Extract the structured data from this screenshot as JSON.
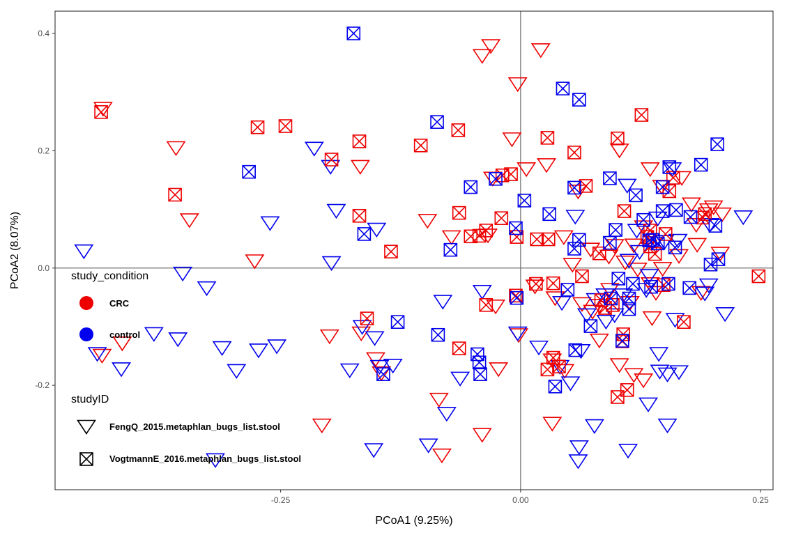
{
  "chart_data": {
    "type": "scatter",
    "title": "",
    "xlabel": "PCoA1 (9.25%)",
    "ylabel": "PCoA2 (8.07%)",
    "xlim": [
      -0.485,
      0.263
    ],
    "ylim": [
      -0.378,
      0.438
    ],
    "x_ticks": [
      -0.25,
      0.0,
      0.25
    ],
    "x_tick_labels": [
      "-0.25",
      "0.00",
      "0.25"
    ],
    "y_ticks": [
      -0.2,
      0.0,
      0.2,
      0.4
    ],
    "y_tick_labels": [
      "-0.2",
      "0.0",
      "0.2",
      "0.4"
    ],
    "reference_lines": {
      "x": 0.0,
      "y": 0.0
    },
    "grid": false,
    "legend_position": "left-inside",
    "legends": [
      {
        "title": "study_condition",
        "encodes": "color",
        "entries": [
          {
            "label": "CRC",
            "color": "#ee0000"
          },
          {
            "label": "control",
            "color": "#0000ee"
          }
        ]
      },
      {
        "title": "studyID",
        "encodes": "shape",
        "entries": [
          {
            "label": "FengQ_2015.metaphlan_bugs_list.stool",
            "shape": "triangle-down"
          },
          {
            "label": "VogtmannE_2016.metaphlan_bugs_list.stool",
            "shape": "square-x"
          }
        ]
      }
    ],
    "colors": {
      "CRC": "#ee0000",
      "control": "#0000ee"
    },
    "series": [
      {
        "condition": "CRC",
        "shape": "triangle-down",
        "points": [
          [
            -0.435,
            0.271
          ],
          [
            -0.359,
            0.204
          ],
          [
            -0.345,
            0.081
          ],
          [
            -0.277,
            0.011
          ],
          [
            -0.167,
            0.172
          ],
          [
            -0.031,
            0.378
          ],
          [
            -0.04,
            0.361
          ],
          [
            0.021,
            0.371
          ],
          [
            -0.003,
            0.313
          ],
          [
            -0.009,
            0.219
          ],
          [
            0.006,
            0.168
          ],
          [
            0.027,
            0.175
          ],
          [
            -0.029,
            0.152
          ],
          [
            -0.097,
            0.08
          ],
          [
            -0.072,
            0.052
          ],
          [
            -0.034,
            0.055
          ],
          [
            0.045,
            0.052
          ],
          [
            0.073,
            0.031
          ],
          [
            0.092,
            0.019
          ],
          [
            0.135,
            0.168
          ],
          [
            0.168,
            0.153
          ],
          [
            0.178,
            0.108
          ],
          [
            0.196,
            0.098
          ],
          [
            0.201,
            0.103
          ],
          [
            0.21,
            0.091
          ],
          [
            0.183,
            0.073
          ],
          [
            0.184,
            0.039
          ],
          [
            0.208,
            0.024
          ],
          [
            0.188,
            -0.043
          ],
          [
            0.137,
            -0.086
          ],
          [
            0.135,
            -0.028
          ],
          [
            0.122,
            -0.003
          ],
          [
            0.109,
            0.009
          ],
          [
            0.098,
            0.037
          ],
          [
            0.093,
            -0.038
          ],
          [
            0.114,
            -0.06
          ],
          [
            0.075,
            -0.075
          ],
          [
            0.036,
            -0.052
          ],
          [
            0.015,
            -0.032
          ],
          [
            -0.026,
            -0.066
          ],
          [
            -0.002,
            -0.115
          ],
          [
            0.033,
            -0.158
          ],
          [
            0.046,
            -0.176
          ],
          [
            0.082,
            -0.124
          ],
          [
            0.103,
            -0.166
          ],
          [
            0.118,
            -0.183
          ],
          [
            0.128,
            -0.192
          ],
          [
            -0.085,
            -0.225
          ],
          [
            -0.04,
            -0.285
          ],
          [
            -0.023,
            -0.173
          ],
          [
            -0.082,
            -0.32
          ],
          [
            -0.145,
            -0.18
          ],
          [
            -0.151,
            -0.156
          ],
          [
            -0.166,
            -0.112
          ],
          [
            -0.199,
            -0.117
          ],
          [
            -0.415,
            -0.129
          ],
          [
            -0.436,
            -0.15
          ],
          [
            0.148,
            -0.002
          ],
          [
            0.082,
            -0.065
          ],
          [
            0.165,
            0.02
          ],
          [
            0.033,
            -0.266
          ],
          [
            -0.207,
            -0.269
          ],
          [
            0.103,
            0.2
          ],
          [
            0.06,
            0.13
          ],
          [
            0.147,
            0.138
          ],
          [
            0.128,
            0.069
          ],
          [
            0.054,
            0.005
          ],
          [
            0.064,
            -0.062
          ],
          [
            0.141,
            -0.043
          ],
          [
            0.118,
            0.038
          ]
        ]
      },
      {
        "condition": "control",
        "shape": "triangle-down",
        "points": [
          [
            -0.215,
            0.203
          ],
          [
            -0.198,
            0.172
          ],
          [
            -0.192,
            0.097
          ],
          [
            -0.261,
            0.076
          ],
          [
            -0.15,
            0.065
          ],
          [
            -0.197,
            0.008
          ],
          [
            -0.352,
            -0.01
          ],
          [
            -0.327,
            -0.035
          ],
          [
            -0.455,
            0.028
          ],
          [
            -0.441,
            -0.147
          ],
          [
            -0.416,
            -0.173
          ],
          [
            -0.382,
            -0.113
          ],
          [
            -0.357,
            -0.122
          ],
          [
            -0.311,
            -0.137
          ],
          [
            -0.273,
            -0.141
          ],
          [
            -0.254,
            -0.134
          ],
          [
            -0.296,
            -0.176
          ],
          [
            -0.318,
            -0.328
          ],
          [
            -0.178,
            -0.175
          ],
          [
            -0.147,
            -0.169
          ],
          [
            -0.152,
            -0.12
          ],
          [
            -0.165,
            -0.101
          ],
          [
            -0.133,
            -0.167
          ],
          [
            -0.153,
            -0.311
          ],
          [
            -0.096,
            -0.303
          ],
          [
            -0.077,
            -0.249
          ],
          [
            -0.063,
            -0.189
          ],
          [
            -0.081,
            -0.058
          ],
          [
            -0.003,
            -0.112
          ],
          [
            -0.04,
            -0.041
          ],
          [
            0.019,
            -0.136
          ],
          [
            0.041,
            -0.169
          ],
          [
            0.052,
            -0.197
          ],
          [
            0.063,
            -0.142
          ],
          [
            0.069,
            -0.081
          ],
          [
            0.078,
            -0.055
          ],
          [
            0.089,
            -0.092
          ],
          [
            0.098,
            -0.081
          ],
          [
            0.077,
            -0.27
          ],
          [
            0.061,
            -0.306
          ],
          [
            0.06,
            -0.33
          ],
          [
            0.112,
            -0.312
          ],
          [
            0.133,
            -0.233
          ],
          [
            0.145,
            -0.177
          ],
          [
            0.144,
            -0.147
          ],
          [
            0.153,
            -0.182
          ],
          [
            0.165,
            -0.178
          ],
          [
            0.153,
            -0.269
          ],
          [
            0.213,
            -0.079
          ],
          [
            0.192,
            -0.044
          ],
          [
            0.196,
            -0.03
          ],
          [
            0.232,
            0.086
          ],
          [
            0.197,
            0.073
          ],
          [
            0.121,
            0.063
          ],
          [
            0.124,
            0.027
          ],
          [
            0.113,
            0.012
          ],
          [
            0.143,
            0.084
          ],
          [
            0.164,
            0.046
          ],
          [
            0.134,
            -0.014
          ],
          [
            0.131,
            -0.038
          ],
          [
            0.107,
            -0.047
          ],
          [
            0.088,
            -0.047
          ],
          [
            0.111,
            0.14
          ],
          [
            0.161,
            -0.089
          ],
          [
            0.043,
            -0.06
          ],
          [
            0.057,
            0.087
          ],
          [
            0.15,
            0.044
          ],
          [
            0.158,
            0.168
          ]
        ]
      },
      {
        "condition": "CRC",
        "shape": "square-x",
        "points": [
          [
            -0.437,
            0.266
          ],
          [
            -0.36,
            0.125
          ],
          [
            -0.274,
            0.24
          ],
          [
            -0.245,
            0.242
          ],
          [
            -0.197,
            0.185
          ],
          [
            -0.168,
            0.216
          ],
          [
            -0.168,
            0.089
          ],
          [
            -0.135,
            0.028
          ],
          [
            -0.104,
            0.209
          ],
          [
            -0.065,
            0.235
          ],
          [
            -0.064,
            0.094
          ],
          [
            -0.052,
            0.054
          ],
          [
            -0.043,
            0.055
          ],
          [
            -0.036,
            0.064
          ],
          [
            -0.02,
            0.085
          ],
          [
            -0.019,
            0.158
          ],
          [
            -0.004,
            0.053
          ],
          [
            0.017,
            0.049
          ],
          [
            0.029,
            0.049
          ],
          [
            0.028,
            0.222
          ],
          [
            0.056,
            0.197
          ],
          [
            0.068,
            0.14
          ],
          [
            0.082,
            0.025
          ],
          [
            0.101,
            0.221
          ],
          [
            0.126,
            0.261
          ],
          [
            0.108,
            0.097
          ],
          [
            0.135,
            0.037
          ],
          [
            0.132,
            0.053
          ],
          [
            0.135,
            0.064
          ],
          [
            0.151,
            0.058
          ],
          [
            0.159,
            0.154
          ],
          [
            0.155,
            0.131
          ],
          [
            0.19,
            0.086
          ],
          [
            0.192,
            0.092
          ],
          [
            0.248,
            -0.014
          ],
          [
            0.17,
            -0.092
          ],
          [
            0.149,
            -0.029
          ],
          [
            0.034,
            -0.026
          ],
          [
            0.016,
            -0.027
          ],
          [
            0.084,
            -0.055
          ],
          [
            0.088,
            -0.068
          ],
          [
            0.096,
            -0.063
          ],
          [
            0.107,
            -0.113
          ],
          [
            0.106,
            -0.125
          ],
          [
            0.111,
            -0.208
          ],
          [
            0.101,
            -0.22
          ],
          [
            0.04,
            -0.168
          ],
          [
            0.028,
            -0.173
          ],
          [
            0.034,
            -0.153
          ],
          [
            -0.005,
            -0.047
          ],
          [
            -0.064,
            -0.137
          ],
          [
            -0.036,
            -0.063
          ],
          [
            -0.16,
            -0.086
          ],
          [
            0.064,
            -0.014
          ],
          [
            0.14,
            0.024
          ],
          [
            -0.01,
            0.16
          ]
        ]
      },
      {
        "condition": "control",
        "shape": "square-x",
        "points": [
          [
            -0.174,
            0.4
          ],
          [
            -0.283,
            0.164
          ],
          [
            -0.163,
            0.058
          ],
          [
            -0.087,
            0.249
          ],
          [
            -0.052,
            0.138
          ],
          [
            -0.073,
            0.031
          ],
          [
            -0.026,
            0.152
          ],
          [
            0.004,
            0.115
          ],
          [
            -0.005,
            0.068
          ],
          [
            0.03,
            0.092
          ],
          [
            0.044,
            0.306
          ],
          [
            0.061,
            0.287
          ],
          [
            0.056,
            0.137
          ],
          [
            0.056,
            0.033
          ],
          [
            0.061,
            0.048
          ],
          [
            0.093,
            0.153
          ],
          [
            0.093,
            0.043
          ],
          [
            0.099,
            0.065
          ],
          [
            0.12,
            0.124
          ],
          [
            0.128,
            0.082
          ],
          [
            0.134,
            0.047
          ],
          [
            0.143,
            0.042
          ],
          [
            0.148,
            0.097
          ],
          [
            0.155,
            0.172
          ],
          [
            0.162,
            0.099
          ],
          [
            0.161,
            0.035
          ],
          [
            0.177,
            0.087
          ],
          [
            0.188,
            0.176
          ],
          [
            0.198,
            0.006
          ],
          [
            0.203,
            0.072
          ],
          [
            0.206,
            0.015
          ],
          [
            0.205,
            0.211
          ],
          [
            0.176,
            -0.034
          ],
          [
            0.154,
            -0.027
          ],
          [
            0.136,
            -0.032
          ],
          [
            0.117,
            -0.027
          ],
          [
            0.102,
            -0.018
          ],
          [
            0.113,
            -0.052
          ],
          [
            0.113,
            -0.07
          ],
          [
            0.094,
            -0.052
          ],
          [
            0.049,
            -0.037
          ],
          [
            0.073,
            -0.099
          ],
          [
            0.106,
            -0.124
          ],
          [
            0.057,
            -0.14
          ],
          [
            0.036,
            -0.202
          ],
          [
            -0.004,
            -0.051
          ],
          [
            -0.086,
            -0.114
          ],
          [
            -0.045,
            -0.147
          ],
          [
            -0.043,
            -0.161
          ],
          [
            -0.042,
            -0.181
          ],
          [
            -0.128,
            -0.092
          ],
          [
            -0.143,
            -0.181
          ],
          [
            0.138,
            0.048
          ],
          [
            0.148,
            0.138
          ]
        ]
      }
    ]
  }
}
